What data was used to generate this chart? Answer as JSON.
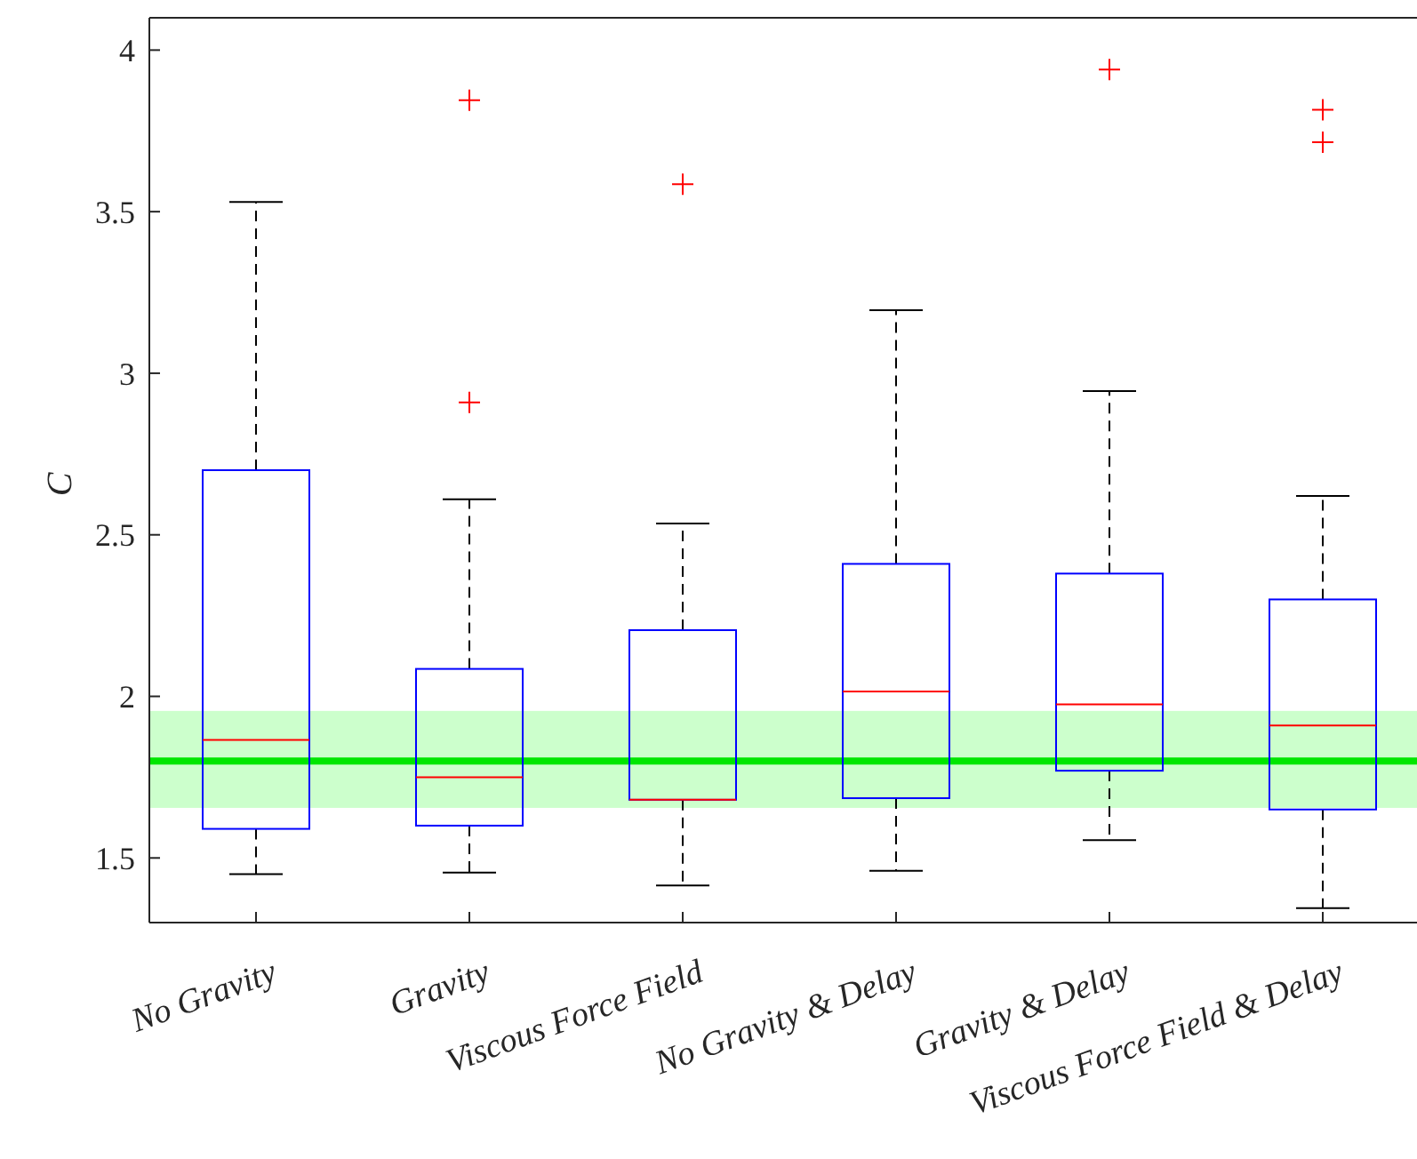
{
  "chart_data": {
    "type": "box",
    "ylabel": "C",
    "categories": [
      "No Gravity",
      "Gravity",
      "Viscous Force Field",
      "No Gravity & Delay",
      "Gravity & Delay",
      "Viscous Force Field & Delay"
    ],
    "series": [
      {
        "color": "#0000ff",
        "boxes": [
          {
            "low": 1.45,
            "q1": 1.59,
            "median": 1.865,
            "q3": 2.7,
            "high": 3.53
          },
          {
            "low": 1.455,
            "q1": 1.6,
            "median": 1.75,
            "q3": 2.085,
            "high": 2.61,
            "outliers": [
              2.91,
              3.845
            ]
          },
          {
            "low": 1.415,
            "q1": 1.68,
            "median": 1.68,
            "q3": 2.205,
            "high": 2.535,
            "outliers": [
              3.585
            ]
          },
          {
            "low": 1.46,
            "q1": 1.685,
            "median": 2.015,
            "q3": 2.41,
            "high": 3.195
          },
          {
            "low": 1.555,
            "q1": 1.77,
            "median": 1.975,
            "q3": 2.38,
            "high": 2.945,
            "outliers": [
              3.94
            ]
          },
          {
            "low": 1.345,
            "q1": 1.65,
            "median": 1.91,
            "q3": 2.3,
            "high": 2.62,
            "outliers": [
              3.715,
              3.815
            ]
          }
        ]
      }
    ],
    "ylim": [
      1.3,
      4.1
    ],
    "yticks": [
      1.5,
      2,
      2.5,
      3,
      3.5,
      4
    ],
    "ref_lines": [
      {
        "axis": "y",
        "value": 1.8,
        "color": "#00e600"
      }
    ],
    "bands": [
      {
        "axis": "y",
        "from": 1.655,
        "to": 1.955,
        "color": "#ccffcc"
      }
    ]
  }
}
